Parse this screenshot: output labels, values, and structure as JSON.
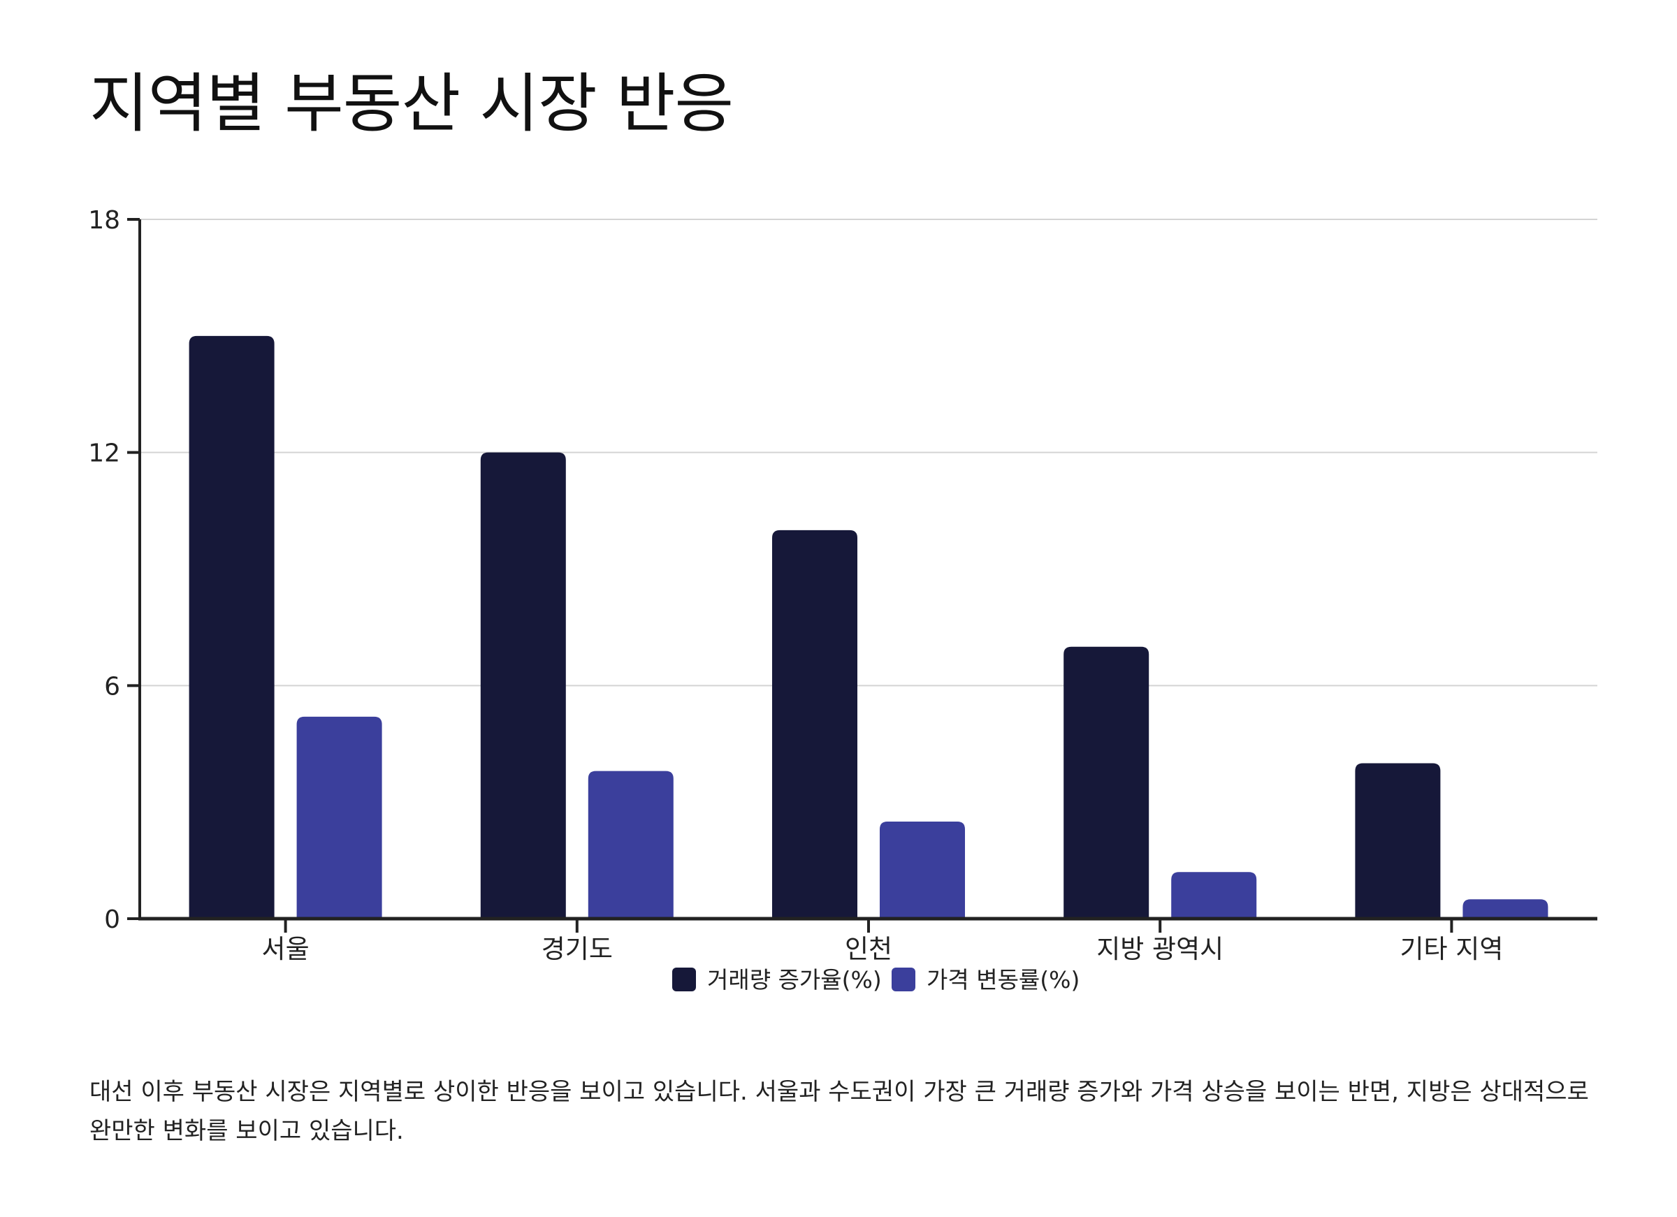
{
  "title": "지역별 부동산 시장 반응",
  "caption": "대선 이후 부동산 시장은 지역별로 상이한 반응을 보이고 있습니다. 서울과 수도권이 가장 큰 거래량 증가와 가격 상승을 보이는 반면, 지방은 상대적으로 완만한 변화를 보이고 있습니다.",
  "colors": {
    "series_dark": "#161839",
    "series_blue": "#3b3f9c",
    "grid": "#d4d4d4",
    "axis": "#222222"
  },
  "chart_data": {
    "type": "bar",
    "title": "지역별 부동산 시장 반응",
    "categories": [
      "서울",
      "경기도",
      "인천",
      "지방 광역시",
      "기타 지역"
    ],
    "series": [
      {
        "name": "거래량 증가율(%)",
        "values": [
          15,
          12,
          10,
          7,
          4
        ]
      },
      {
        "name": "가격 변동률(%)",
        "values": [
          5.2,
          3.8,
          2.5,
          1.2,
          0.5
        ]
      }
    ],
    "yticks": [
      0,
      6,
      12,
      18
    ],
    "ylim": [
      0,
      18
    ],
    "grid": true,
    "legend": "bottom-center",
    "xlabel": "",
    "ylabel": ""
  }
}
